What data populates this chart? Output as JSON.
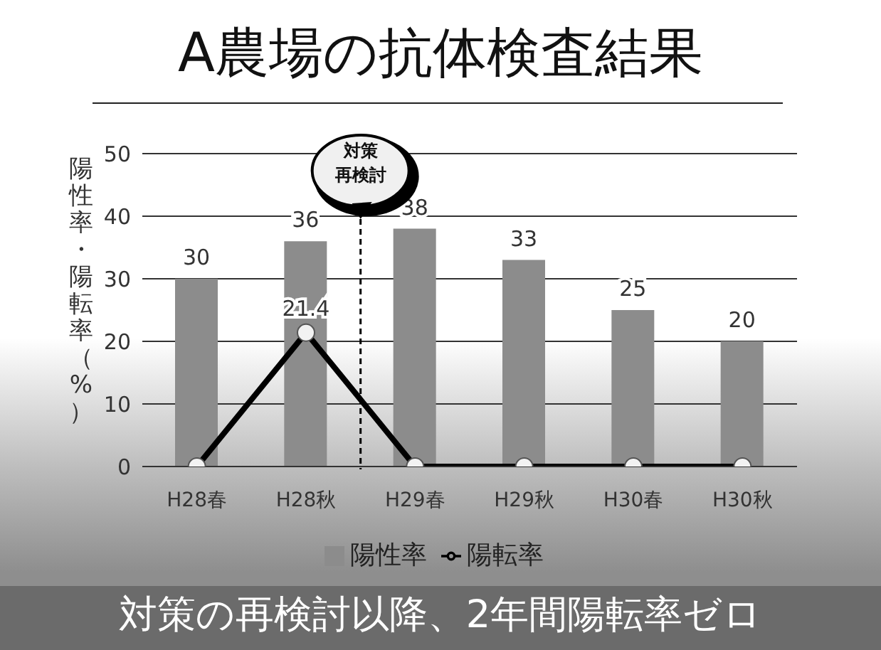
{
  "chart_data": {
    "type": "bar",
    "title": "A農場の抗体検査結果",
    "ylabel": "陽性率・陽転率（%）",
    "categories": [
      "H28春",
      "H28秋",
      "H29春",
      "H29秋",
      "H30春",
      "H30秋"
    ],
    "series": [
      {
        "name": "陽性率",
        "color": "#8c8c8c",
        "values": [
          30,
          36,
          38,
          33,
          25,
          20
        ],
        "value_labels": [
          "30",
          "36",
          "38",
          "33",
          "25",
          "20"
        ]
      },
      {
        "name": "陽転率",
        "type": "line",
        "color": "#000000",
        "marker": "circle",
        "values": [
          0,
          21.4,
          0,
          0,
          0,
          0
        ],
        "value_labels": [
          null,
          "21.4",
          null,
          null,
          null,
          null
        ]
      }
    ],
    "ylim": [
      0,
      50
    ],
    "yticks": [
      0,
      10,
      20,
      30,
      40,
      50
    ],
    "grid": "y",
    "legend": "bottom",
    "annotations": [
      "対策再検討",
      "対策の再検討以降、2年間陽転率ゼロ"
    ]
  }
}
